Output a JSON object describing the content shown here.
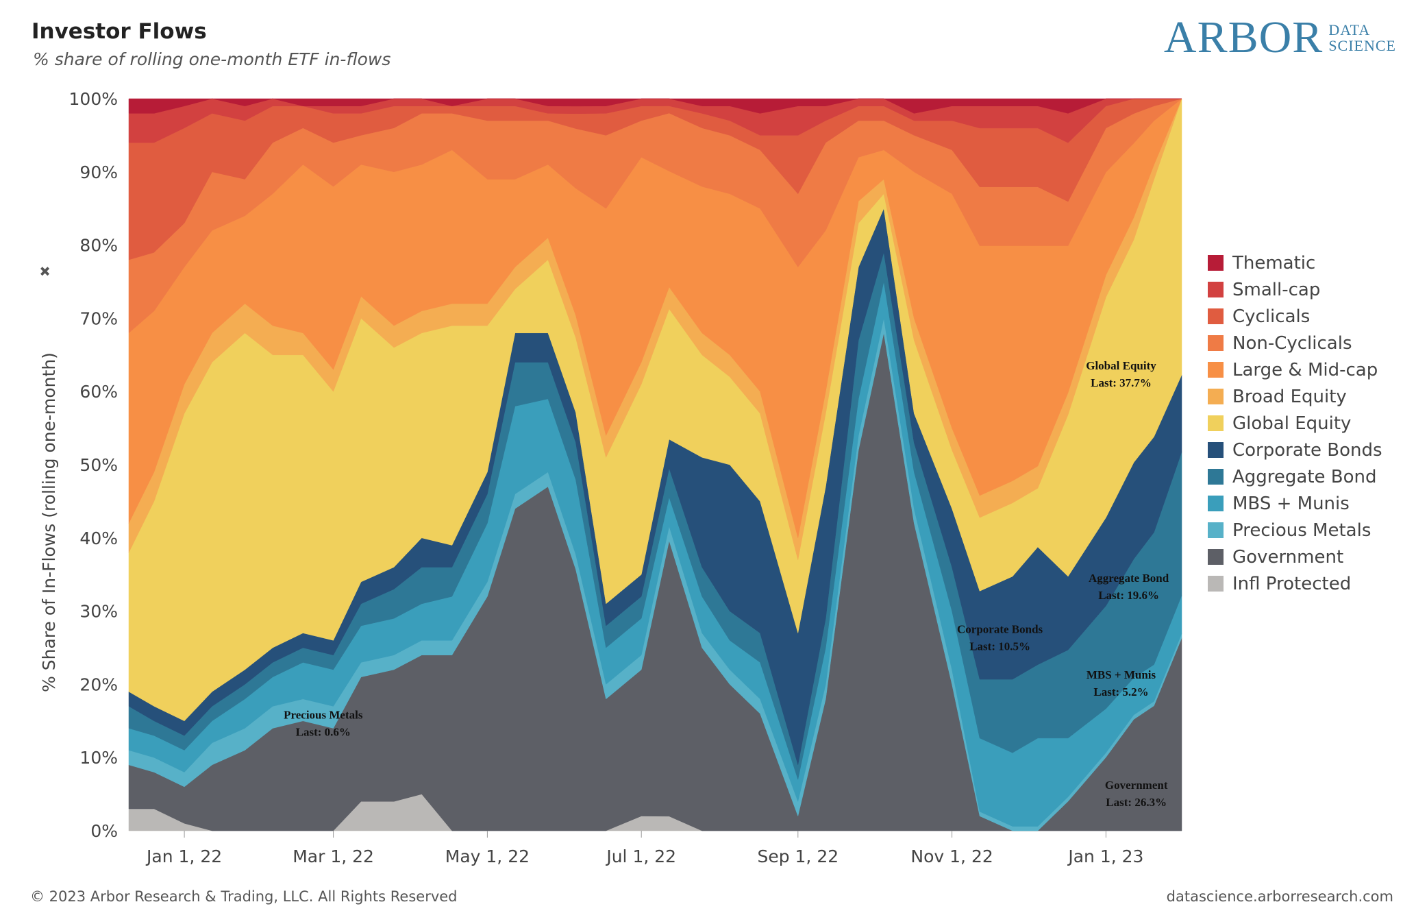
{
  "header": {
    "title": "Investor Flows",
    "subtitle": "% share of rolling one-month ETF in-flows"
  },
  "logo": {
    "main": "ARBOR",
    "line1": "DATA",
    "line2": "SCIENCE"
  },
  "footer": {
    "copyright": "© 2023 Arbor Research & Trading, LLC. All Rights Reserved",
    "website": "datascience.arborresearch.com"
  },
  "icons": {
    "pin": "pin-icon"
  },
  "chart_data": {
    "type": "area",
    "stacked": "percent",
    "ylabel": "% Share of In-Flows (rolling one-month)",
    "ylim": [
      0,
      100
    ],
    "yticks": [
      "0%",
      "10%",
      "20%",
      "30%",
      "40%",
      "50%",
      "60%",
      "70%",
      "80%",
      "90%",
      "100%"
    ],
    "xlim": [
      "2021-12-10",
      "2023-01-31"
    ],
    "xticks": [
      {
        "label": "Jan 1, 22",
        "date": "2022-01-01"
      },
      {
        "label": "Mar 1, 22",
        "date": "2022-03-01"
      },
      {
        "label": "May 1, 22",
        "date": "2022-05-01"
      },
      {
        "label": "Jul 1, 22",
        "date": "2022-07-01"
      },
      {
        "label": "Sep 1, 22",
        "date": "2022-09-01"
      },
      {
        "label": "Nov 1, 22",
        "date": "2022-11-01"
      },
      {
        "label": "Jan 1, 23",
        "date": "2023-01-01"
      }
    ],
    "x": [
      "2021-12-10",
      "2021-12-20",
      "2022-01-01",
      "2022-01-12",
      "2022-01-25",
      "2022-02-05",
      "2022-02-17",
      "2022-03-01",
      "2022-03-12",
      "2022-03-25",
      "2022-04-05",
      "2022-04-17",
      "2022-05-01",
      "2022-05-12",
      "2022-05-25",
      "2022-06-05",
      "2022-06-17",
      "2022-07-01",
      "2022-07-12",
      "2022-07-25",
      "2022-08-05",
      "2022-08-17",
      "2022-09-01",
      "2022-09-12",
      "2022-09-25",
      "2022-10-05",
      "2022-10-17",
      "2022-11-01",
      "2022-11-12",
      "2022-11-25",
      "2022-12-05",
      "2022-12-17",
      "2023-01-01",
      "2023-01-12",
      "2023-01-20",
      "2023-01-31"
    ],
    "legend_position": "right",
    "series": [
      {
        "name": "Infl Protected",
        "color": "#bab8b6",
        "values": [
          3,
          3,
          1,
          0,
          0,
          0,
          0,
          0,
          4,
          4,
          5,
          0,
          0,
          0,
          0,
          0,
          0,
          2,
          2,
          0,
          0,
          0,
          0,
          0,
          0,
          0,
          0,
          0,
          0,
          0,
          0,
          0,
          0,
          0,
          0,
          0
        ]
      },
      {
        "name": "Government",
        "color": "#5d5f66",
        "values": [
          6,
          5,
          5,
          9,
          11,
          14,
          15,
          14,
          17,
          18,
          19,
          24,
          32,
          44,
          47,
          35,
          18,
          20,
          38,
          25,
          20,
          16,
          2,
          18,
          52,
          68,
          42,
          20,
          2,
          0,
          0,
          4,
          10,
          15,
          17,
          26.3
        ]
      },
      {
        "name": "Precious Metals",
        "color": "#57b1c8",
        "values": [
          2,
          2,
          2,
          3,
          3,
          3,
          3,
          3,
          2,
          2,
          2,
          2,
          2,
          2,
          2,
          2,
          2,
          2,
          2,
          2,
          2,
          2,
          2,
          2,
          2,
          2,
          2,
          2,
          0.6,
          0.6,
          0.6,
          0.6,
          0.6,
          0.6,
          0.6,
          0.6
        ]
      },
      {
        "name": "MBS + Munis",
        "color": "#3a9ebb",
        "values": [
          3,
          3,
          3,
          3,
          4,
          4,
          5,
          5,
          5,
          5,
          5,
          6,
          8,
          12,
          10,
          10,
          5,
          5,
          4,
          5,
          4,
          5,
          3,
          5,
          5,
          5,
          5,
          8,
          10,
          10,
          12,
          8,
          6,
          5,
          5,
          5.2
        ]
      },
      {
        "name": "Aggregate Bond",
        "color": "#2e7896",
        "values": [
          3,
          2,
          2,
          2,
          2,
          2,
          2,
          2,
          3,
          4,
          5,
          4,
          4,
          6,
          5,
          5,
          3,
          3,
          4,
          4,
          4,
          4,
          2,
          4,
          8,
          4,
          4,
          6,
          8,
          10,
          10,
          12,
          14,
          16,
          18,
          19.6
        ]
      },
      {
        "name": "Corporate Bonds",
        "color": "#26507a",
        "values": [
          2,
          2,
          2,
          2,
          2,
          2,
          2,
          2,
          3,
          3,
          4,
          3,
          3,
          4,
          4,
          4,
          3,
          3,
          4,
          15,
          20,
          18,
          18,
          18,
          10,
          6,
          4,
          8,
          12,
          14,
          16,
          10,
          12,
          13,
          13,
          10.5
        ]
      },
      {
        "name": "Global Equity",
        "color": "#f0d05c",
        "values": [
          19,
          28,
          42,
          45,
          46,
          40,
          38,
          34,
          36,
          30,
          28,
          30,
          20,
          6,
          10,
          10,
          20,
          26,
          18,
          14,
          12,
          12,
          10,
          10,
          6,
          2,
          10,
          8,
          10,
          10,
          8,
          22,
          30,
          30,
          35,
          37.7
        ]
      },
      {
        "name": "Broad Equity",
        "color": "#f4ad52",
        "values": [
          4,
          4,
          4,
          4,
          4,
          4,
          3,
          3,
          3,
          3,
          3,
          3,
          3,
          3,
          3,
          3,
          3,
          3,
          3,
          3,
          3,
          3,
          3,
          3,
          3,
          2,
          3,
          3,
          3,
          3,
          3,
          3,
          3,
          3,
          2,
          0
        ]
      },
      {
        "name": "Large & Mid-cap",
        "color": "#f78f45",
        "values": [
          26,
          22,
          16,
          14,
          12,
          18,
          23,
          25,
          18,
          21,
          20,
          21,
          17,
          12,
          10,
          17,
          31,
          28,
          16,
          20,
          22,
          25,
          37,
          22,
          6,
          4,
          20,
          32,
          34,
          32,
          30,
          20,
          14,
          10,
          6,
          0
        ]
      },
      {
        "name": "Non-Cyclicals",
        "color": "#ef7b45",
        "values": [
          10,
          8,
          6,
          8,
          5,
          7,
          5,
          6,
          4,
          6,
          7,
          5,
          8,
          8,
          6,
          8,
          10,
          5,
          8,
          8,
          8,
          8,
          10,
          12,
          5,
          4,
          5,
          6,
          8,
          8,
          8,
          6,
          6,
          4,
          2,
          0
        ]
      },
      {
        "name": "Cyclicals",
        "color": "#e05c40",
        "values": [
          16,
          15,
          13,
          8,
          8,
          5,
          3,
          4,
          3,
          3,
          1,
          1,
          2,
          2,
          1,
          2,
          3,
          2,
          1,
          2,
          2,
          2,
          8,
          3,
          2,
          2,
          2,
          4,
          8,
          8,
          8,
          8,
          3,
          2,
          1,
          0
        ]
      },
      {
        "name": "Small-cap",
        "color": "#d24140",
        "values": [
          4,
          4,
          3,
          2,
          2,
          1,
          0,
          1,
          1,
          1,
          1,
          0,
          1,
          1,
          1,
          1,
          1,
          1,
          1,
          1,
          2,
          3,
          4,
          2,
          1,
          1,
          1,
          2,
          3,
          3,
          3,
          4,
          1,
          0,
          0,
          0
        ]
      },
      {
        "name": "Thematic",
        "color": "#b71c37",
        "values": [
          2,
          2,
          1,
          0,
          1,
          0,
          1,
          1,
          1,
          0,
          0,
          1,
          0,
          0,
          1,
          1,
          1,
          0,
          0,
          1,
          1,
          2,
          1,
          1,
          0,
          0,
          2,
          1,
          1,
          1,
          1,
          2,
          0,
          0,
          0,
          0
        ]
      }
    ],
    "annotations": [
      {
        "line1": "Global Equity",
        "line2": "Last: 37.7%",
        "date": "2023-01-07",
        "value": 63
      },
      {
        "line1": "Aggregate Bond",
        "line2": "Last: 19.6%",
        "date": "2023-01-10",
        "value": 34
      },
      {
        "line1": "Corporate Bonds",
        "line2": "Last: 10.5%",
        "date": "2022-11-20",
        "value": 27
      },
      {
        "line1": "MBS + Munis",
        "line2": "Last: 5.2%",
        "date": "2023-01-07",
        "value": 20.8
      },
      {
        "line1": "Precious Metals",
        "line2": "Last: 0.6%",
        "date": "2022-02-25",
        "value": 15.3
      },
      {
        "line1": "Government",
        "line2": "Last: 26.3%",
        "date": "2023-01-13",
        "value": 5.7
      }
    ]
  }
}
